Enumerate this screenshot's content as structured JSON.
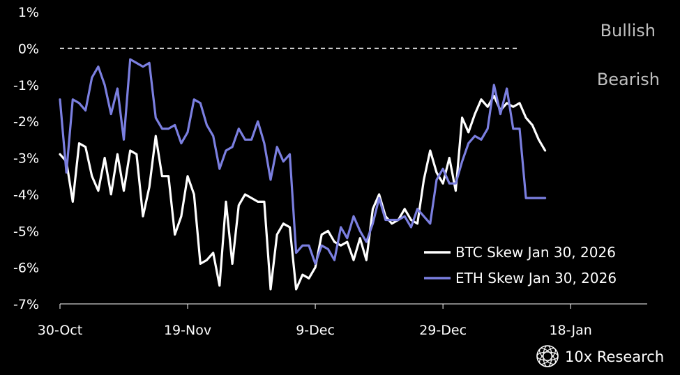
{
  "chart_data": {
    "type": "line",
    "title": "",
    "xlabel": "",
    "ylabel": "",
    "ylim": [
      -7,
      1
    ],
    "y_ticks": [
      1,
      0,
      -1,
      -2,
      -3,
      -4,
      -5,
      -6,
      -7
    ],
    "y_tick_labels": [
      "1%",
      "0%",
      "-1%",
      "-2%",
      "-3%",
      "-4%",
      "-5%",
      "-6%",
      "-7%"
    ],
    "x_range": [
      "2025-10-30",
      "2026-01-30"
    ],
    "x_ticks": [
      "2025-10-30",
      "2025-11-19",
      "2025-12-09",
      "2025-12-29",
      "2026-01-18"
    ],
    "x_tick_labels": [
      "30-Oct",
      "19-Nov",
      "9-Dec",
      "29-Dec",
      "18-Jan"
    ],
    "reference_line": {
      "y": 0,
      "style": "dashed",
      "color": "#d9d9d9"
    },
    "annotations": {
      "above": "Bullish",
      "below": "Bearish"
    },
    "grid": false,
    "legend_position": "bottom-right",
    "background": "#000000",
    "series": [
      {
        "name": "BTC Skew Jan 30, 2026",
        "color": "#ffffff",
        "x": [
          "2025-10-30",
          "2025-10-31",
          "2025-11-01",
          "2025-11-02",
          "2025-11-03",
          "2025-11-04",
          "2025-11-05",
          "2025-11-06",
          "2025-11-07",
          "2025-11-08",
          "2025-11-09",
          "2025-11-10",
          "2025-11-11",
          "2025-11-12",
          "2025-11-13",
          "2025-11-14",
          "2025-11-15",
          "2025-11-16",
          "2025-11-17",
          "2025-11-18",
          "2025-11-19",
          "2025-11-20",
          "2025-11-21",
          "2025-11-22",
          "2025-11-23",
          "2025-11-24",
          "2025-11-25",
          "2025-11-26",
          "2025-11-27",
          "2025-11-28",
          "2025-11-29",
          "2025-11-30",
          "2025-12-01",
          "2025-12-02",
          "2025-12-03",
          "2025-12-04",
          "2025-12-05",
          "2025-12-06",
          "2025-12-07",
          "2025-12-08",
          "2025-12-09",
          "2025-12-10",
          "2025-12-11",
          "2025-12-12",
          "2025-12-13",
          "2025-12-14",
          "2025-12-15",
          "2025-12-16",
          "2025-12-17",
          "2025-12-18",
          "2025-12-19",
          "2025-12-20",
          "2025-12-21",
          "2025-12-22",
          "2025-12-23",
          "2025-12-24",
          "2025-12-25",
          "2025-12-26",
          "2025-12-27",
          "2025-12-28",
          "2025-12-29",
          "2025-12-30",
          "2025-12-31",
          "2026-01-01",
          "2026-01-02",
          "2026-01-03",
          "2026-01-04",
          "2026-01-05",
          "2026-01-06",
          "2026-01-07",
          "2026-01-08",
          "2026-01-09",
          "2026-01-10",
          "2026-01-11",
          "2026-01-12",
          "2026-01-13",
          "2026-01-14"
        ],
        "values": [
          -2.9,
          -3.1,
          -4.2,
          -2.6,
          -2.7,
          -3.5,
          -3.9,
          -3.0,
          -4.0,
          -2.9,
          -3.9,
          -2.8,
          -2.9,
          -4.6,
          -3.8,
          -2.4,
          -3.5,
          -3.5,
          -5.1,
          -4.6,
          -3.5,
          -4.0,
          -5.9,
          -5.8,
          -5.6,
          -6.5,
          -4.2,
          -5.9,
          -4.3,
          -4.0,
          -4.1,
          -4.2,
          -4.2,
          -6.6,
          -5.1,
          -4.8,
          -4.9,
          -6.6,
          -6.2,
          -6.3,
          -6.0,
          -5.1,
          -5.0,
          -5.3,
          -5.4,
          -5.3,
          -5.8,
          -5.2,
          -5.8,
          -4.4,
          -4.0,
          -4.6,
          -4.8,
          -4.7,
          -4.4,
          -4.7,
          -4.8,
          -3.6,
          -2.8,
          -3.4,
          -3.7,
          -3.0,
          -3.9,
          -1.9,
          -2.3,
          -1.8,
          -1.4,
          -1.6,
          -1.3,
          -1.7,
          -1.5,
          -1.6,
          -1.5,
          -1.9,
          -2.1,
          -2.5,
          -2.8
        ]
      },
      {
        "name": "ETH Skew Jan 30, 2026",
        "color": "#7b7fe0",
        "x": [
          "2025-10-30",
          "2025-10-31",
          "2025-11-01",
          "2025-11-02",
          "2025-11-03",
          "2025-11-04",
          "2025-11-05",
          "2025-11-06",
          "2025-11-07",
          "2025-11-08",
          "2025-11-09",
          "2025-11-10",
          "2025-11-11",
          "2025-11-12",
          "2025-11-13",
          "2025-11-14",
          "2025-11-15",
          "2025-11-16",
          "2025-11-17",
          "2025-11-18",
          "2025-11-19",
          "2025-11-20",
          "2025-11-21",
          "2025-11-22",
          "2025-11-23",
          "2025-11-24",
          "2025-11-25",
          "2025-11-26",
          "2025-11-27",
          "2025-11-28",
          "2025-11-29",
          "2025-11-30",
          "2025-12-01",
          "2025-12-02",
          "2025-12-03",
          "2025-12-04",
          "2025-12-05",
          "2025-12-06",
          "2025-12-07",
          "2025-12-08",
          "2025-12-09",
          "2025-12-10",
          "2025-12-11",
          "2025-12-12",
          "2025-12-13",
          "2025-12-14",
          "2025-12-15",
          "2025-12-16",
          "2025-12-17",
          "2025-12-18",
          "2025-12-19",
          "2025-12-20",
          "2025-12-21",
          "2025-12-22",
          "2025-12-23",
          "2025-12-24",
          "2025-12-25",
          "2025-12-26",
          "2025-12-27",
          "2025-12-28",
          "2025-12-29",
          "2025-12-30",
          "2025-12-31",
          "2026-01-01",
          "2026-01-02",
          "2026-01-03",
          "2026-01-04",
          "2026-01-05",
          "2026-01-06",
          "2026-01-07",
          "2026-01-08",
          "2026-01-09",
          "2026-01-10",
          "2026-01-11",
          "2026-01-12",
          "2026-01-13",
          "2026-01-14"
        ],
        "values": [
          -1.4,
          -3.4,
          -1.4,
          -1.5,
          -1.7,
          -0.8,
          -0.5,
          -1.0,
          -1.8,
          -1.1,
          -2.5,
          -0.3,
          -0.4,
          -0.5,
          -0.4,
          -1.9,
          -2.2,
          -2.2,
          -2.1,
          -2.6,
          -2.3,
          -1.4,
          -1.5,
          -2.1,
          -2.4,
          -3.3,
          -2.8,
          -2.7,
          -2.2,
          -2.5,
          -2.5,
          -2.0,
          -2.6,
          -3.6,
          -2.7,
          -3.1,
          -2.9,
          -5.6,
          -5.4,
          -5.4,
          -5.9,
          -5.4,
          -5.5,
          -5.8,
          -4.9,
          -5.2,
          -4.6,
          -5.0,
          -5.3,
          -4.8,
          -4.1,
          -4.7,
          -4.7,
          -4.7,
          -4.6,
          -4.9,
          -4.4,
          -4.6,
          -4.8,
          -3.6,
          -3.3,
          -3.7,
          -3.7,
          -3.1,
          -2.6,
          -2.4,
          -2.5,
          -2.2,
          -1.0,
          -1.8,
          -1.1,
          -2.2,
          -2.2,
          -4.1,
          -4.1,
          -4.1,
          -4.1
        ]
      }
    ]
  },
  "branding": {
    "text": "10x Research",
    "icon": "geometric-globe-icon"
  }
}
